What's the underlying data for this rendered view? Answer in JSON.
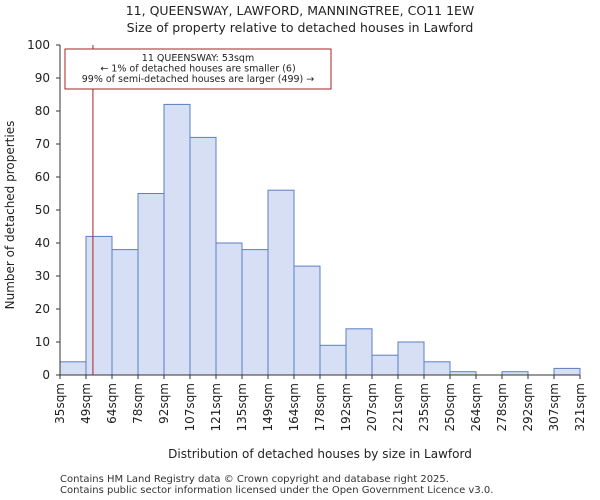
{
  "header": {
    "title_line1": "11, QUEENSWAY, LAWFORD, MANNINGTREE, CO11 1EW",
    "title_line2": "Size of property relative to detached houses in Lawford"
  },
  "footer": {
    "line1": "Contains HM Land Registry data © Crown copyright and database right 2025.",
    "line2": "Contains public sector information licensed under the Open Government Licence v3.0."
  },
  "chart_data": {
    "type": "bar",
    "title": "Size of property relative to detached houses in Lawford",
    "xlabel": "Distribution of detached houses by size in Lawford",
    "ylabel": "Number of detached properties",
    "ylim": [
      0,
      100
    ],
    "yticks": [
      0,
      10,
      20,
      30,
      40,
      50,
      60,
      70,
      80,
      90,
      100
    ],
    "bin_edges": [
      35,
      49,
      64,
      78,
      92,
      107,
      121,
      135,
      149,
      164,
      178,
      192,
      207,
      221,
      235,
      250,
      264,
      278,
      292,
      307,
      321
    ],
    "bin_edge_labels": [
      "35sqm",
      "49sqm",
      "64sqm",
      "78sqm",
      "92sqm",
      "107sqm",
      "121sqm",
      "135sqm",
      "149sqm",
      "164sqm",
      "178sqm",
      "192sqm",
      "207sqm",
      "221sqm",
      "235sqm",
      "250sqm",
      "264sqm",
      "278sqm",
      "292sqm",
      "307sqm",
      "321sqm"
    ],
    "values": [
      4,
      42,
      38,
      55,
      82,
      72,
      40,
      38,
      56,
      33,
      9,
      14,
      6,
      10,
      4,
      1,
      0,
      1,
      0,
      2
    ],
    "colors": {
      "bar_fill": "#d6dff3",
      "bar_stroke": "#5b7fc4",
      "marker": "#aa2222",
      "axis": "#333333"
    },
    "marker": {
      "value": 53,
      "label": "11 QUEENSWAY: 53sqm",
      "line2": "← 1% of detached houses are smaller (6)",
      "line3": "99% of semi-detached houses are larger (499) →"
    }
  }
}
